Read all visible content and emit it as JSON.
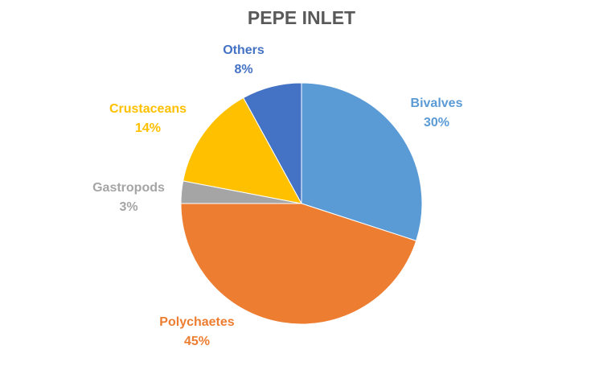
{
  "chart_data": {
    "type": "pie",
    "title": "PEPE INLET",
    "slices": [
      {
        "label": "Bivalves",
        "value": 30,
        "display": "30%",
        "color": "#5B9BD5",
        "label_color": "#5B9BD5"
      },
      {
        "label": "Polychaetes",
        "value": 45,
        "display": "45%",
        "color": "#ED7D31",
        "label_color": "#ED7D31"
      },
      {
        "label": "Gastropods",
        "value": 3,
        "display": "3%",
        "color": "#A5A5A5",
        "label_color": "#A5A5A5"
      },
      {
        "label": "Crustaceans",
        "value": 14,
        "display": "14%",
        "color": "#FFC000",
        "label_color": "#FFC000"
      },
      {
        "label": "Others",
        "value": 8,
        "display": "8%",
        "color": "#4472C4",
        "label_color": "#4472C4"
      }
    ],
    "start_angle": "12 o'clock",
    "direction": "clockwise",
    "legend": "none"
  }
}
